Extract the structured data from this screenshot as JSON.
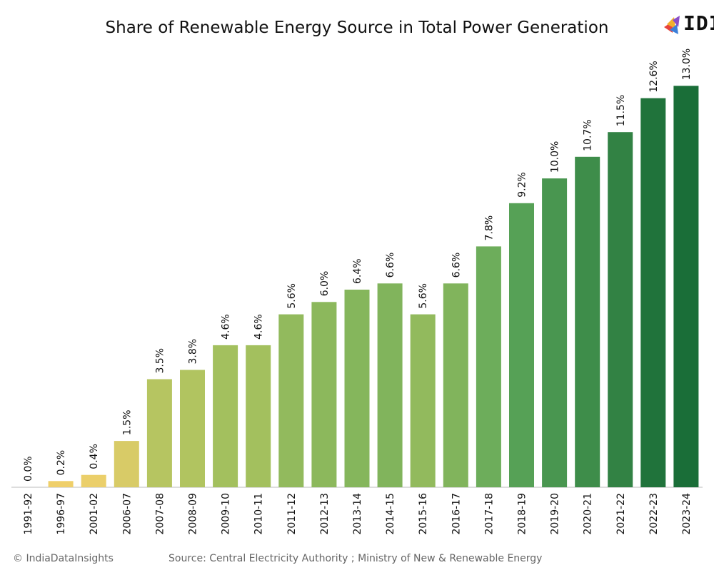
{
  "chart_data": {
    "type": "bar",
    "title": "Share of Renewable Energy Source in Total Power Generation",
    "categories": [
      "1991-92",
      "1996-97",
      "2001-02",
      "2006-07",
      "2007-08",
      "2008-09",
      "2009-10",
      "2010-11",
      "2011-12",
      "2012-13",
      "2013-14",
      "2014-15",
      "2015-16",
      "2016-17",
      "2017-18",
      "2018-19",
      "2019-20",
      "2020-21",
      "2021-22",
      "2022-23",
      "2023-24"
    ],
    "values": [
      0.0,
      0.2,
      0.4,
      1.5,
      3.5,
      3.8,
      4.6,
      4.6,
      5.6,
      6.0,
      6.4,
      6.6,
      5.6,
      6.6,
      7.8,
      9.2,
      10.0,
      10.7,
      11.5,
      12.6,
      13.0
    ],
    "labels": [
      "0.0%",
      "0.2%",
      "0.4%",
      "1.5%",
      "3.5%",
      "3.8%",
      "4.6%",
      "4.6%",
      "5.6%",
      "6.0%",
      "6.4%",
      "6.6%",
      "5.6%",
      "6.6%",
      "7.8%",
      "9.2%",
      "10.0%",
      "10.7%",
      "11.5%",
      "12.6%",
      "13.0%"
    ],
    "ylim": [
      0,
      14
    ],
    "xlabel": "",
    "ylabel": "",
    "color_scale": [
      "#f2d06b",
      "#a8c25e",
      "#5ea85a",
      "#1a6e38"
    ],
    "grid": false,
    "legend": "none"
  },
  "logo": {
    "text": "IDI"
  },
  "footer": {
    "copyright": "© IndiaDataInsights",
    "source": "Source:  Central Electricity Authority ; Ministry of New & Renewable Energy"
  }
}
